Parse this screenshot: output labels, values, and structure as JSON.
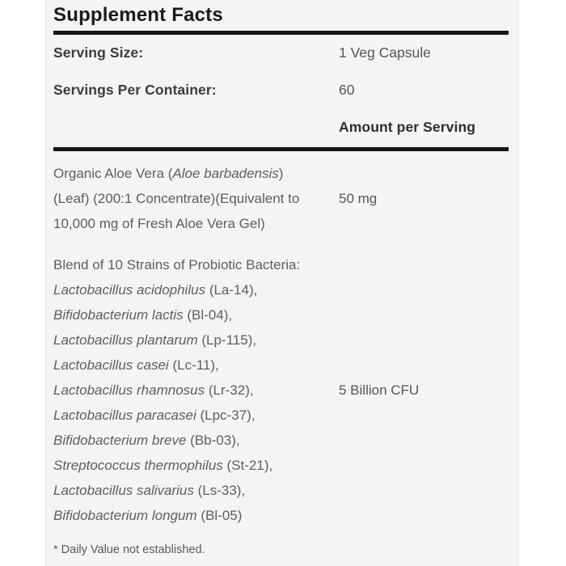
{
  "colors": {
    "panel_background": "#f4f4f4",
    "rule": "#161616",
    "title_text": "#1b1b1b",
    "bold_label_text": "#3c3c3c",
    "body_text": "#5e5e5e"
  },
  "title": "Supplement Facts",
  "serving": {
    "size_label": "Serving Size:",
    "size_value": "1 Veg Capsule",
    "container_label": "Servings Per Container:",
    "container_value": "60",
    "amount_header": "Amount per Serving"
  },
  "aloe": {
    "line1_pre": "Organic Aloe Vera (",
    "line1_italic": "Aloe barbadensis",
    "line1_post": ")",
    "line2": "(Leaf) (200:1 Concentrate)(Equivalent to",
    "line3": "10,000 mg of Fresh Aloe Vera Gel)",
    "amount": "50 mg"
  },
  "blend": {
    "header": "Blend of 10 Strains of Probiotic Bacteria:",
    "strains": [
      {
        "species": "Lactobacillus acidophilus",
        "code": "(La-14),"
      },
      {
        "species": "Bifidobacterium lactis",
        "code": "(Bl-04),"
      },
      {
        "species": "Lactobacillus plantarum",
        "code": "(Lp-115),"
      },
      {
        "species": "Lactobacillus casei",
        "code": "(Lc-11),"
      },
      {
        "species": "Lactobacillus rhamnosus",
        "code": "(Lr-32),"
      },
      {
        "species": "Lactobacillus paracasei",
        "code": "(Lpc-37),"
      },
      {
        "species": "Bifidobacterium breve",
        "code": "(Bb-03),"
      },
      {
        "species": "Streptococcus thermophilus",
        "code": "(St-21),"
      },
      {
        "species": "Lactobacillus salivarius",
        "code": "(Ls-33),"
      },
      {
        "species": "Bifidobacterium longum",
        "code": "(Bl-05)"
      }
    ],
    "amount": "5 Billion CFU"
  },
  "footnote": "* Daily Value not established."
}
